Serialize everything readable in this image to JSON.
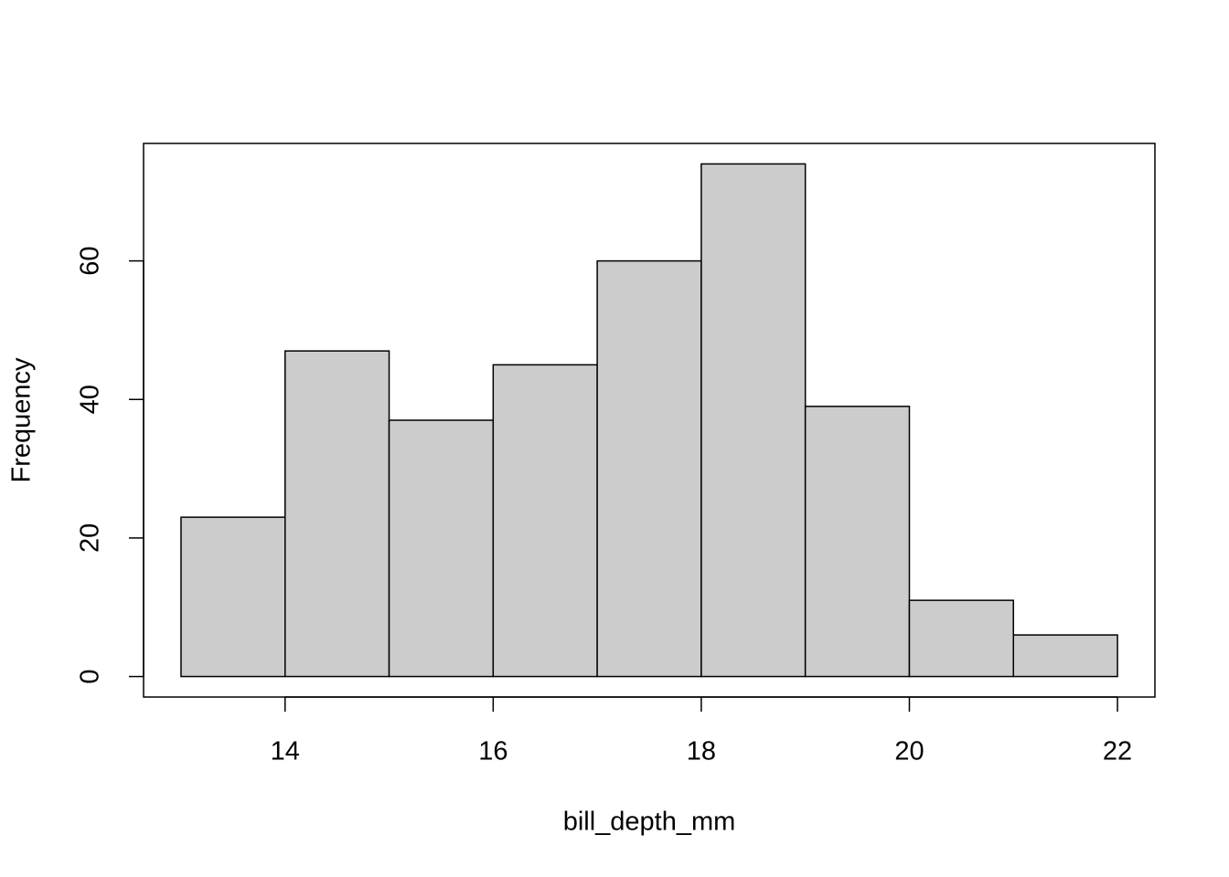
{
  "chart_data": {
    "type": "histogram",
    "x_label": "bill_depth_mm",
    "y_label": "Frequency",
    "bins": [
      13,
      14,
      15,
      16,
      17,
      18,
      19,
      20,
      21,
      22
    ],
    "values": [
      23,
      47,
      37,
      45,
      60,
      74,
      39,
      11,
      6
    ],
    "color": "#cccccc",
    "xlim": [
      12.64,
      22.36
    ],
    "ylim": [
      -2.96,
      76.96
    ],
    "xticks": [
      14,
      16,
      18,
      20,
      22
    ],
    "yticks": [
      0,
      20,
      40,
      60
    ]
  }
}
